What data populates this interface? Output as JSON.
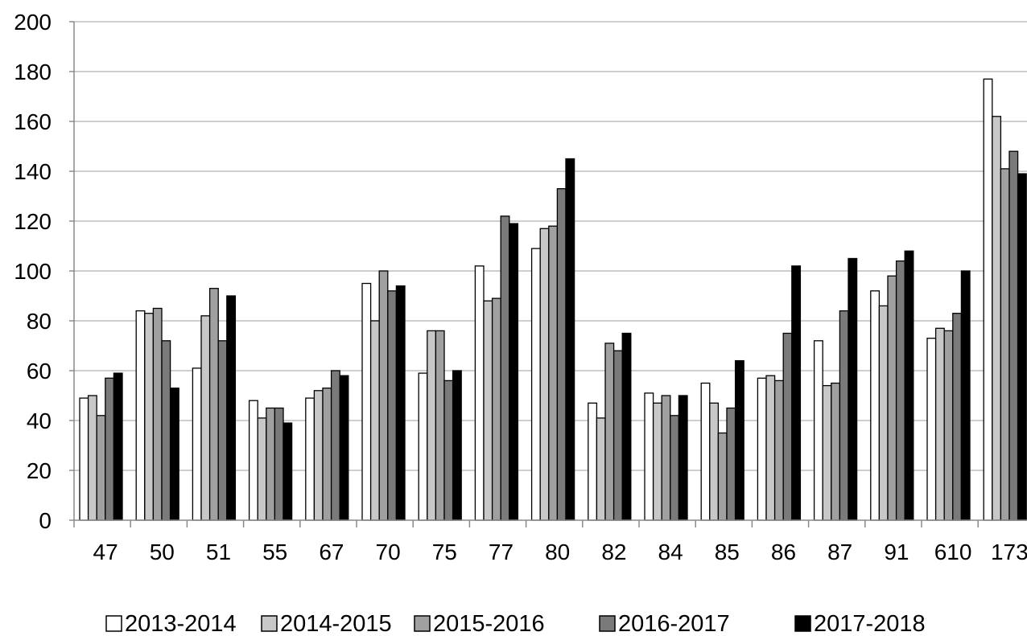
{
  "chart_data": {
    "type": "bar",
    "title": "",
    "xlabel": "",
    "ylabel": "",
    "ylim": [
      0,
      200
    ],
    "ytick_step": 20,
    "grid": "horizontal",
    "legend_position": "bottom",
    "categories": [
      "47",
      "50",
      "51",
      "55",
      "67",
      "70",
      "75",
      "77",
      "80",
      "82",
      "84",
      "85",
      "86",
      "87",
      "91",
      "610",
      "173"
    ],
    "series": [
      {
        "name": "2013-2014",
        "color": "#ffffff",
        "values": [
          49,
          84,
          61,
          48,
          49,
          95,
          59,
          102,
          109,
          47,
          51,
          55,
          57,
          72,
          92,
          73,
          177
        ]
      },
      {
        "name": "2014-2015",
        "color": "#c8c8c8",
        "values": [
          50,
          83,
          82,
          41,
          52,
          80,
          76,
          88,
          117,
          41,
          47,
          47,
          58,
          54,
          86,
          77,
          162
        ]
      },
      {
        "name": "2015-2016",
        "color": "#a0a0a0",
        "values": [
          42,
          85,
          93,
          45,
          53,
          100,
          76,
          89,
          118,
          71,
          50,
          35,
          56,
          55,
          98,
          76,
          141
        ]
      },
      {
        "name": "2016-2017",
        "color": "#7a7a7a",
        "values": [
          57,
          72,
          72,
          45,
          60,
          92,
          56,
          122,
          133,
          68,
          42,
          45,
          75,
          84,
          104,
          83,
          148
        ]
      },
      {
        "name": "2017-2018",
        "color": "#000000",
        "values": [
          59,
          53,
          90,
          39,
          58,
          94,
          60,
          119,
          145,
          75,
          50,
          64,
          102,
          105,
          108,
          100,
          139
        ]
      }
    ]
  }
}
